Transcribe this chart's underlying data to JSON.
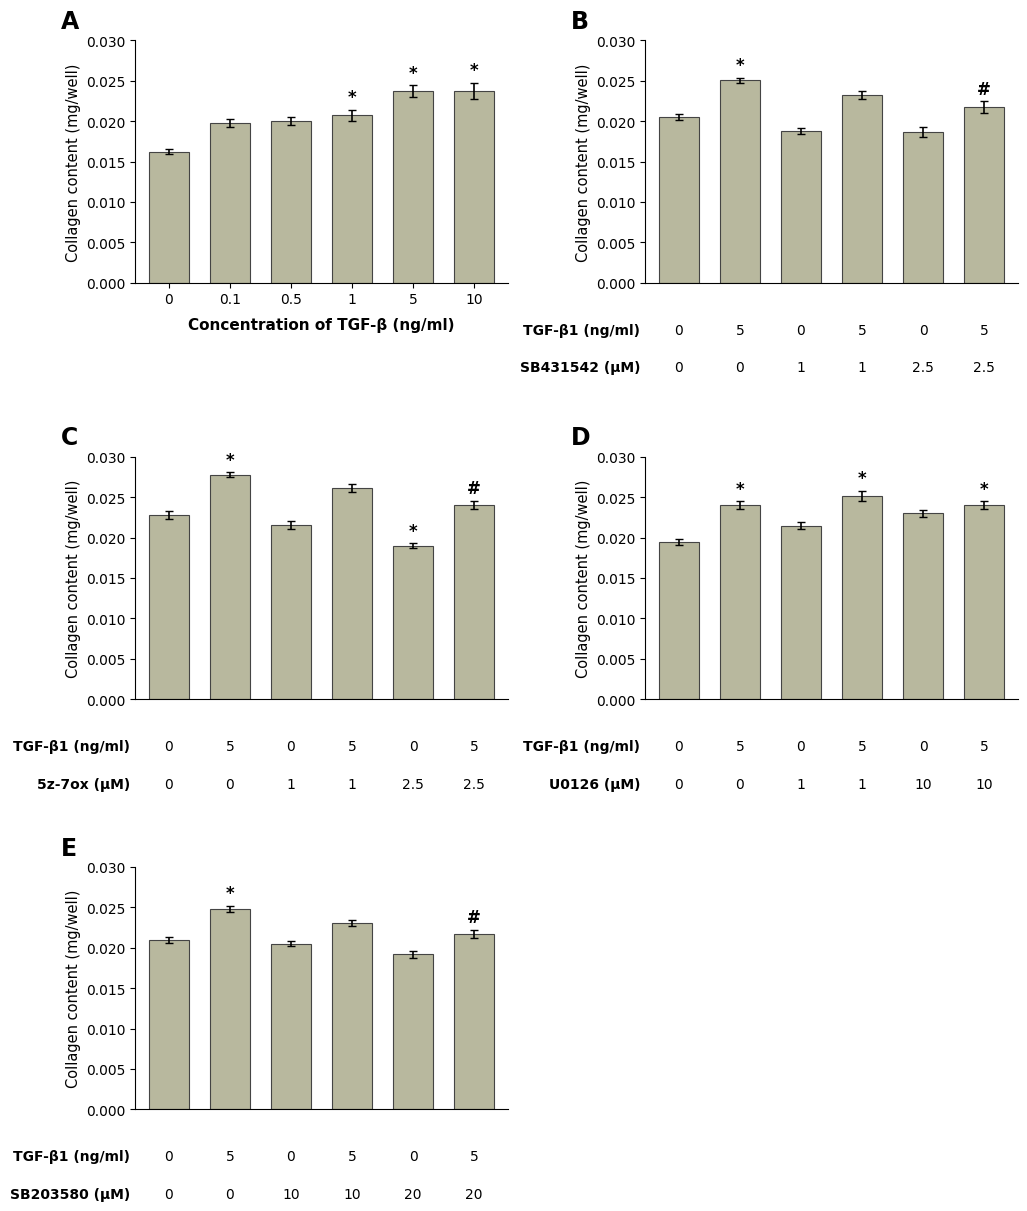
{
  "panel_A": {
    "values": [
      0.01625,
      0.01975,
      0.02,
      0.02075,
      0.02375,
      0.02375
    ],
    "errors": [
      0.0003,
      0.0005,
      0.0005,
      0.0007,
      0.0007,
      0.001
    ],
    "xtick_labels": [
      "0",
      "0.1",
      "0.5",
      "1",
      "5",
      "10"
    ],
    "xlabel": "Concentration of TGF-β (ng/ml)",
    "ylabel": "Collagen content (mg/well)",
    "sig_stars": [
      "",
      "",
      "",
      "*",
      "*",
      "*"
    ],
    "panel_label": "A",
    "ylim": [
      0,
      0.03
    ],
    "yticks": [
      0.0,
      0.005,
      0.01,
      0.015,
      0.02,
      0.025,
      0.03
    ]
  },
  "panel_B": {
    "values": [
      0.0205,
      0.0251,
      0.0188,
      0.0233,
      0.0187,
      0.02175
    ],
    "errors": [
      0.0004,
      0.0003,
      0.0004,
      0.0005,
      0.0006,
      0.0007
    ],
    "row1_label": "TGF-β1 (ng/ml)",
    "row1_vals": [
      "0",
      "5",
      "0",
      "5",
      "0",
      "5"
    ],
    "row2_label": "SB431542 (μM)",
    "row2_vals": [
      "0",
      "0",
      "1",
      "1",
      "2.5",
      "2.5"
    ],
    "ylabel": "Collagen content (mg/well)",
    "sig_stars": [
      "",
      "*",
      "",
      "",
      "",
      "#"
    ],
    "panel_label": "B",
    "ylim": [
      0,
      0.03
    ],
    "yticks": [
      0.0,
      0.005,
      0.01,
      0.015,
      0.02,
      0.025,
      0.03
    ]
  },
  "panel_C": {
    "values": [
      0.0228,
      0.0278,
      0.02155,
      0.0261,
      0.019,
      0.0241
    ],
    "errors": [
      0.0005,
      0.0003,
      0.0005,
      0.0005,
      0.0003,
      0.0005
    ],
    "row1_label": "TGF-β1 (ng/ml)",
    "row1_vals": [
      "0",
      "5",
      "0",
      "5",
      "0",
      "5"
    ],
    "row2_label": "5z-7ox (μM)",
    "row2_vals": [
      "0",
      "0",
      "1",
      "1",
      "2.5",
      "2.5"
    ],
    "ylabel": "Collagen content (mg/well)",
    "sig_stars": [
      "",
      "*",
      "",
      "",
      "*",
      "#"
    ],
    "panel_label": "C",
    "ylim": [
      0,
      0.03
    ],
    "yticks": [
      0.0,
      0.005,
      0.01,
      0.015,
      0.02,
      0.025,
      0.03
    ]
  },
  "panel_D": {
    "values": [
      0.0195,
      0.024,
      0.0215,
      0.0252,
      0.023,
      0.024
    ],
    "errors": [
      0.0004,
      0.0005,
      0.0004,
      0.0006,
      0.0004,
      0.0005
    ],
    "row1_label": "TGF-β1 (ng/ml)",
    "row1_vals": [
      "0",
      "5",
      "0",
      "5",
      "0",
      "5"
    ],
    "row2_label": "U0126 (μM)",
    "row2_vals": [
      "0",
      "0",
      "1",
      "1",
      "10",
      "10"
    ],
    "ylabel": "Collagen content (mg/well)",
    "sig_stars": [
      "",
      "*",
      "",
      "*",
      "",
      "*"
    ],
    "panel_label": "D",
    "ylim": [
      0,
      0.03
    ],
    "yticks": [
      0.0,
      0.005,
      0.01,
      0.015,
      0.02,
      0.025,
      0.03
    ]
  },
  "panel_E": {
    "values": [
      0.021,
      0.0248,
      0.0205,
      0.0231,
      0.0192,
      0.02175
    ],
    "errors": [
      0.0004,
      0.0004,
      0.0003,
      0.0004,
      0.0004,
      0.0005
    ],
    "row1_label": "TGF-β1 (ng/ml)",
    "row1_vals": [
      "0",
      "5",
      "0",
      "5",
      "0",
      "5"
    ],
    "row2_label": "SB203580 (μM)",
    "row2_vals": [
      "0",
      "0",
      "10",
      "10",
      "20",
      "20"
    ],
    "ylabel": "Collagen content (mg/well)",
    "sig_stars": [
      "",
      "*",
      "",
      "",
      "",
      "#"
    ],
    "panel_label": "E",
    "ylim": [
      0,
      0.03
    ],
    "yticks": [
      0.0,
      0.005,
      0.01,
      0.015,
      0.02,
      0.025,
      0.03
    ]
  },
  "bar_color": "#b8b89e",
  "bar_edgecolor": "#444444",
  "bar_width": 0.65,
  "errorbar_color": "black",
  "errorbar_capsize": 3,
  "errorbar_linewidth": 1.2,
  "star_fontsize": 12,
  "panel_label_fontsize": 17,
  "ylabel_fontsize": 10.5,
  "xlabel_fontsize": 11,
  "tick_fontsize": 10,
  "row_label_fontsize": 10,
  "row_val_fontsize": 10
}
